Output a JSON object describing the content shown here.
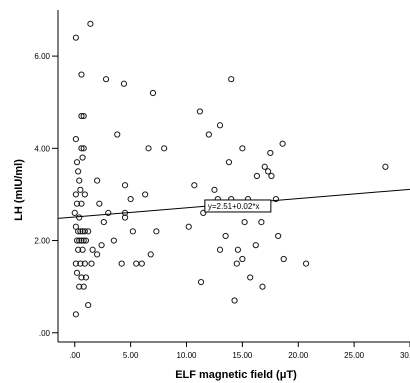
{
  "chart_data": {
    "type": "scatter",
    "title": "",
    "xlabel": "ELF magnetic field (μT)",
    "ylabel": "LH  (mIU/ml)",
    "xlim": [
      -1.5,
      30.0
    ],
    "ylim": [
      -0.2,
      7.0
    ],
    "x_ticks": [
      0,
      5,
      10,
      15,
      20,
      25,
      30
    ],
    "x_tick_labels": [
      ".00",
      "5.00",
      "10.00",
      "15.00",
      "20.00",
      "25.00",
      "30.00"
    ],
    "y_ticks": [
      0,
      2,
      4,
      6
    ],
    "y_tick_labels": [
      ".00",
      "2.00",
      "4.00",
      "6.00"
    ],
    "grid": false,
    "fit_line": {
      "intercept": 2.51,
      "slope": 0.02,
      "label": "y=2.51+0.02*x",
      "label_x": 12.0
    },
    "points": [
      {
        "x": 0.1,
        "y": 6.4
      },
      {
        "x": 1.4,
        "y": 6.7
      },
      {
        "x": 0.6,
        "y": 5.6
      },
      {
        "x": 0.6,
        "y": 4.7
      },
      {
        "x": 0.8,
        "y": 4.7
      },
      {
        "x": 0.1,
        "y": 4.2
      },
      {
        "x": 0.2,
        "y": 3.7
      },
      {
        "x": 0.6,
        "y": 4.0
      },
      {
        "x": 0.8,
        "y": 4.0
      },
      {
        "x": 0.7,
        "y": 3.8
      },
      {
        "x": 0.3,
        "y": 3.5
      },
      {
        "x": 0.4,
        "y": 3.3
      },
      {
        "x": 0.1,
        "y": 3.0
      },
      {
        "x": 0.5,
        "y": 3.1
      },
      {
        "x": 0.9,
        "y": 3.0
      },
      {
        "x": 0.2,
        "y": 2.8
      },
      {
        "x": 0.6,
        "y": 2.8
      },
      {
        "x": 0.0,
        "y": 2.6
      },
      {
        "x": 0.4,
        "y": 2.5
      },
      {
        "x": 0.1,
        "y": 2.3
      },
      {
        "x": 0.3,
        "y": 2.2
      },
      {
        "x": 0.5,
        "y": 2.2
      },
      {
        "x": 0.7,
        "y": 2.2
      },
      {
        "x": 0.9,
        "y": 2.2
      },
      {
        "x": 1.2,
        "y": 2.2
      },
      {
        "x": 0.2,
        "y": 2.0
      },
      {
        "x": 0.4,
        "y": 2.0
      },
      {
        "x": 0.6,
        "y": 2.0
      },
      {
        "x": 0.8,
        "y": 2.0
      },
      {
        "x": 1.0,
        "y": 2.0
      },
      {
        "x": 0.3,
        "y": 1.8
      },
      {
        "x": 0.7,
        "y": 1.8
      },
      {
        "x": 0.1,
        "y": 1.5
      },
      {
        "x": 0.5,
        "y": 1.5
      },
      {
        "x": 0.9,
        "y": 1.5
      },
      {
        "x": 1.5,
        "y": 1.5
      },
      {
        "x": 0.2,
        "y": 1.3
      },
      {
        "x": 0.6,
        "y": 1.2
      },
      {
        "x": 1.0,
        "y": 1.2
      },
      {
        "x": 0.4,
        "y": 1.0
      },
      {
        "x": 0.8,
        "y": 1.0
      },
      {
        "x": 0.1,
        "y": 0.4
      },
      {
        "x": 1.2,
        "y": 0.6
      },
      {
        "x": 1.6,
        "y": 1.8
      },
      {
        "x": 2.0,
        "y": 1.7
      },
      {
        "x": 2.2,
        "y": 2.8
      },
      {
        "x": 2.0,
        "y": 3.3
      },
      {
        "x": 2.6,
        "y": 2.4
      },
      {
        "x": 2.4,
        "y": 1.9
      },
      {
        "x": 3.0,
        "y": 2.6
      },
      {
        "x": 2.8,
        "y": 5.5
      },
      {
        "x": 3.5,
        "y": 2.0
      },
      {
        "x": 3.8,
        "y": 4.3
      },
      {
        "x": 4.4,
        "y": 5.4
      },
      {
        "x": 4.5,
        "y": 3.2
      },
      {
        "x": 4.5,
        "y": 2.6
      },
      {
        "x": 4.5,
        "y": 2.5
      },
      {
        "x": 4.2,
        "y": 1.5
      },
      {
        "x": 5.0,
        "y": 2.9
      },
      {
        "x": 5.2,
        "y": 2.2
      },
      {
        "x": 5.5,
        "y": 1.5
      },
      {
        "x": 6.0,
        "y": 1.5
      },
      {
        "x": 6.3,
        "y": 3.0
      },
      {
        "x": 6.6,
        "y": 4.0
      },
      {
        "x": 6.8,
        "y": 1.7
      },
      {
        "x": 7.0,
        "y": 5.2
      },
      {
        "x": 7.3,
        "y": 2.2
      },
      {
        "x": 8.0,
        "y": 4.0
      },
      {
        "x": 10.2,
        "y": 2.3
      },
      {
        "x": 10.7,
        "y": 3.2
      },
      {
        "x": 11.3,
        "y": 1.1
      },
      {
        "x": 11.2,
        "y": 4.8
      },
      {
        "x": 11.5,
        "y": 2.6
      },
      {
        "x": 12.0,
        "y": 4.3
      },
      {
        "x": 12.5,
        "y": 3.1
      },
      {
        "x": 12.8,
        "y": 2.9
      },
      {
        "x": 13.0,
        "y": 1.8
      },
      {
        "x": 13.0,
        "y": 4.5
      },
      {
        "x": 13.5,
        "y": 2.1
      },
      {
        "x": 13.8,
        "y": 3.7
      },
      {
        "x": 14.0,
        "y": 5.5
      },
      {
        "x": 14.0,
        "y": 2.9
      },
      {
        "x": 14.3,
        "y": 0.7
      },
      {
        "x": 14.5,
        "y": 1.5
      },
      {
        "x": 14.6,
        "y": 1.8
      },
      {
        "x": 15.0,
        "y": 4.0
      },
      {
        "x": 15.0,
        "y": 1.6
      },
      {
        "x": 15.2,
        "y": 2.4
      },
      {
        "x": 15.5,
        "y": 2.9
      },
      {
        "x": 15.7,
        "y": 1.2
      },
      {
        "x": 16.2,
        "y": 1.9
      },
      {
        "x": 16.3,
        "y": 3.4
      },
      {
        "x": 16.7,
        "y": 2.4
      },
      {
        "x": 16.8,
        "y": 1.0
      },
      {
        "x": 17.0,
        "y": 3.6
      },
      {
        "x": 17.3,
        "y": 3.5
      },
      {
        "x": 17.5,
        "y": 3.9
      },
      {
        "x": 17.6,
        "y": 3.4
      },
      {
        "x": 18.0,
        "y": 2.9
      },
      {
        "x": 18.2,
        "y": 2.1
      },
      {
        "x": 18.6,
        "y": 4.1
      },
      {
        "x": 18.7,
        "y": 1.6
      },
      {
        "x": 20.7,
        "y": 1.5
      },
      {
        "x": 27.8,
        "y": 3.6
      }
    ]
  }
}
